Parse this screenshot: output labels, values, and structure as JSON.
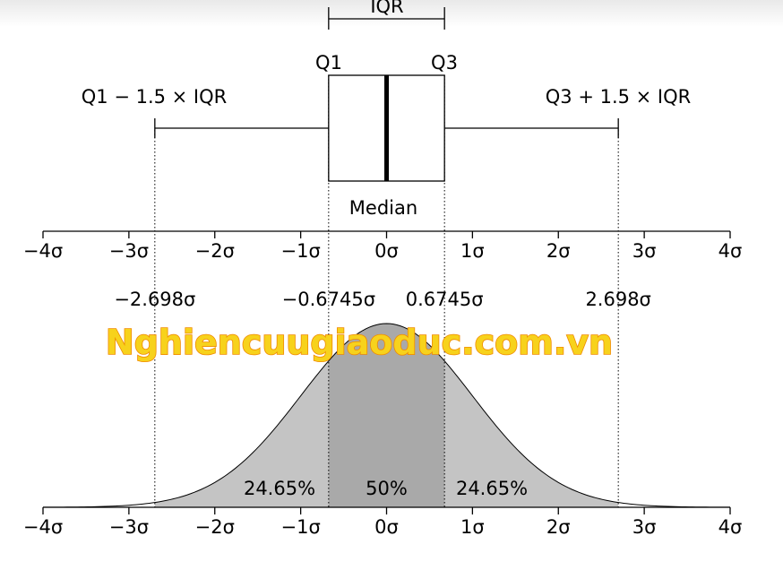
{
  "labels": {
    "iqr": "IQR",
    "q1": "Q1",
    "q3": "Q3",
    "lower_fence": "Q1 − 1.5 × IQR",
    "upper_fence": "Q3 + 1.5 × IQR",
    "median": "Median"
  },
  "chart_data": {
    "type": "diagram",
    "quartiles": {
      "q1": -0.6745,
      "median": 0,
      "q3": 0.6745
    },
    "whiskers": {
      "low": -2.698,
      "high": 2.698
    },
    "axis_range": [
      -4,
      4
    ],
    "axis_ticks": [
      {
        "value": -4,
        "label": "−4σ"
      },
      {
        "value": -3,
        "label": "−3σ"
      },
      {
        "value": -2,
        "label": "−2σ"
      },
      {
        "value": -1,
        "label": "−1σ"
      },
      {
        "value": 0,
        "label": "0σ"
      },
      {
        "value": 1,
        "label": "1σ"
      },
      {
        "value": 2,
        "label": "2σ"
      },
      {
        "value": 3,
        "label": "3σ"
      },
      {
        "value": 4,
        "label": "4σ"
      }
    ],
    "boundary_labels": [
      {
        "value": -2.698,
        "label": "−2.698σ"
      },
      {
        "value": -0.6745,
        "label": "−0.6745σ"
      },
      {
        "value": 0.6745,
        "label": "0.6745σ"
      },
      {
        "value": 2.698,
        "label": "2.698σ"
      }
    ],
    "region_percentages": [
      {
        "from": -2.698,
        "to": -0.6745,
        "label": "24.65%"
      },
      {
        "from": -0.6745,
        "to": 0.6745,
        "label": "50%"
      },
      {
        "from": 0.6745,
        "to": 2.698,
        "label": "24.65%"
      }
    ]
  },
  "colors": {
    "outer_fill": "#c4c4c4",
    "inner_fill": "#a9a9a9",
    "line": "#000000"
  },
  "watermark": "Nghiencuugiaoduc.com.vn"
}
